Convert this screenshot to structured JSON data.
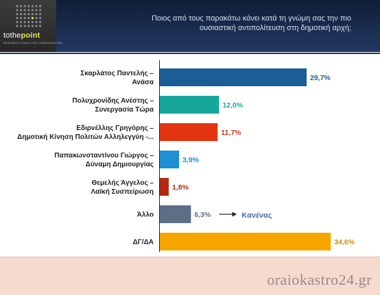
{
  "header": {
    "logo_main": "tothe",
    "logo_accent": "point",
    "logo_tagline": "RESEARCH CONSULTING COMMUNICATION",
    "question": "Ποιος από τους παρακάτω κάνει κατά τη γνώμη σας την πιο\nουσιαστική αντιπολίτευση στη δημοτική αρχή;"
  },
  "footer": {
    "watermark": "oraiokastro24.gr"
  },
  "chart_data": {
    "type": "bar",
    "orientation": "horizontal",
    "categories": [
      [
        "Σκαρλάτος Παντελής –",
        "Ανάσα"
      ],
      [
        "Πολυχρονίδης Ανέστης –",
        "Συνεργασία Τώρα"
      ],
      [
        "Εδιρνέλλης Γρηγόρης –",
        "Δημοτική Κίνηση Πολιτών Αλληλεγγύη -..."
      ],
      [
        "Παπακωνσταντίνου Γιώργος –",
        "Δύναμη Δημιουργίας"
      ],
      [
        "Θεμελής Άγγελος –",
        "Λαϊκή Συσπείρωση"
      ],
      [
        "Άλλο"
      ],
      [
        "ΔΓ/ΔΑ"
      ]
    ],
    "values": [
      29.7,
      12.0,
      11.7,
      3.9,
      1.8,
      6.3,
      34.6
    ],
    "value_labels": [
      "29,7%",
      "12,0%",
      "11,7%",
      "3,9%",
      "1,8%",
      "6,3%",
      "34,6%"
    ],
    "colors": [
      "#1b5e96",
      "#17a79a",
      "#e2340f",
      "#1f8fd6",
      "#b42a10",
      "#5e6e86",
      "#f7a600"
    ],
    "label_colors": [
      "#1b5e96",
      "#17a79a",
      "#d0300e",
      "#1f8fd6",
      "#b42a10",
      "#5e6e86",
      "#d68f00"
    ],
    "annotation": {
      "category_index": 5,
      "text": "Κανένας",
      "color": "#4a6fa5"
    },
    "xlim": [
      0,
      35
    ],
    "grid": false
  }
}
